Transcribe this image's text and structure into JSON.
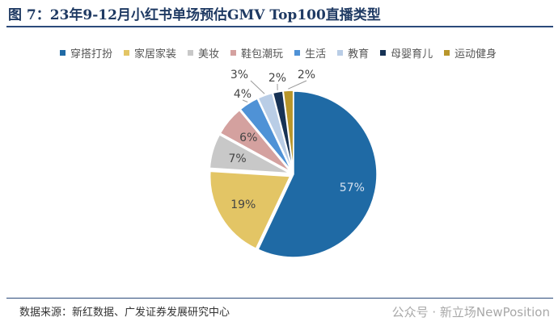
{
  "header": {
    "title": "图 7：23年9-12月小红书单场预估GMV Top100直播类型"
  },
  "source": {
    "text": "数据来源：新红数据、广发证券发展研究中心"
  },
  "watermark": {
    "text": "公众号 · 新立场NewPosition"
  },
  "chart_data": {
    "type": "pie",
    "title": "",
    "categories": [
      "穿搭打扮",
      "家居家装",
      "美妆",
      "鞋包潮玩",
      "生活",
      "教育",
      "母婴育儿",
      "运动健身"
    ],
    "values": [
      57,
      19,
      7,
      6,
      4,
      3,
      2,
      2
    ],
    "labels": [
      "57%",
      "19%",
      "7%",
      "6%",
      "4%",
      "3%",
      "2%",
      "2%"
    ],
    "colors": [
      "#1f6aa5",
      "#e3c565",
      "#c8c8c8",
      "#d4a19f",
      "#4f92d6",
      "#b9cde6",
      "#163255",
      "#b8962b"
    ],
    "legend_position": "top"
  }
}
